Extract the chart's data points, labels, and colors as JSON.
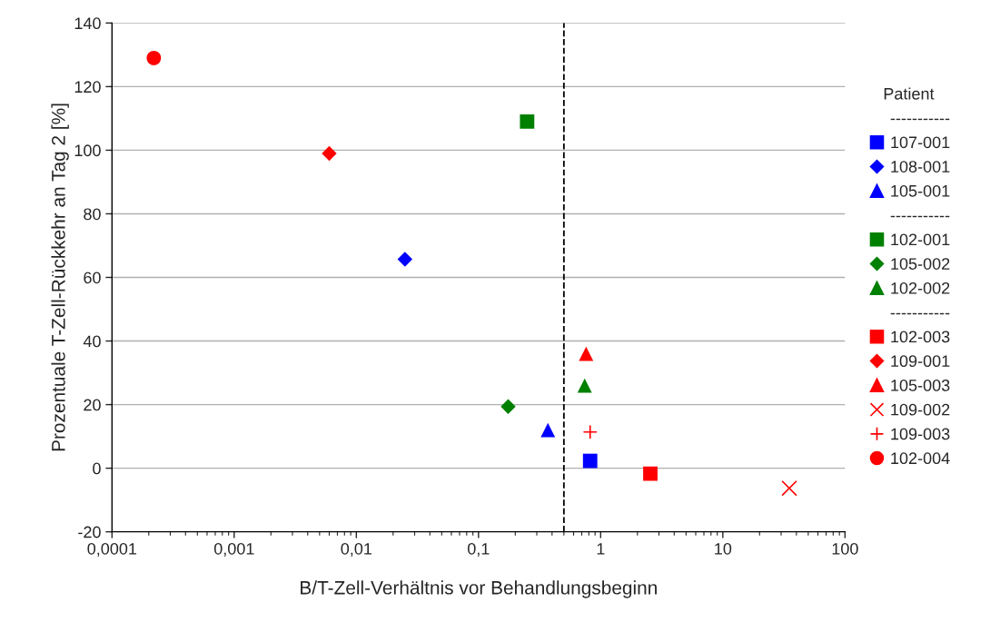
{
  "chart_data": {
    "type": "scatter",
    "xlabel": "B/T-Zell-Verhältnis vor Behandlungsbeginn",
    "ylabel": "Prozentuale T-Zell-Rückkehr an Tag 2 [%]",
    "legend_title": "Patient",
    "legend": "right",
    "log": "x",
    "grid": "y",
    "xlim": [
      0.0001,
      100
    ],
    "xticks": [
      {
        "value": 0.0001,
        "label": "0,0001"
      },
      {
        "value": 0.001,
        "label": "0,001"
      },
      {
        "value": 0.01,
        "label": "0,01"
      },
      {
        "value": 0.1,
        "label": "0,1"
      },
      1,
      10,
      100
    ],
    "ylim": [
      -20,
      140
    ],
    "yticks": [
      -20,
      0,
      20,
      40,
      60,
      80,
      100,
      120,
      140
    ],
    "ref_lines": [
      {
        "axis": "x",
        "value": 0.5,
        "color": "#000000",
        "line_style": "dashed"
      }
    ],
    "series": [
      {
        "name": "-----------",
        "marker": "none"
      },
      {
        "name": "107-001",
        "color": "#0000ff",
        "marker": "square",
        "x": [
          0.82
        ],
        "values": [
          2.3
        ]
      },
      {
        "name": "108-001",
        "color": "#0000ff",
        "marker": "diamond",
        "x": [
          0.025
        ],
        "values": [
          65.7
        ]
      },
      {
        "name": "105-001",
        "color": "#0000ff",
        "marker": "triangle",
        "x": [
          0.37
        ],
        "values": [
          12
        ]
      },
      {
        "name": "-----------",
        "marker": "none"
      },
      {
        "name": "102-001",
        "color": "#008000",
        "marker": "square",
        "x": [
          0.25
        ],
        "values": [
          109
        ]
      },
      {
        "name": "105-002",
        "color": "#008000",
        "marker": "diamond",
        "x": [
          0.175
        ],
        "values": [
          19.4
        ]
      },
      {
        "name": "102-002",
        "color": "#008000",
        "marker": "triangle",
        "x": [
          0.74
        ],
        "values": [
          26
        ]
      },
      {
        "name": "-----------",
        "marker": "none"
      },
      {
        "name": "102-003",
        "color": "#ff0000",
        "marker": "square",
        "x": [
          2.55
        ],
        "values": [
          -1.7
        ]
      },
      {
        "name": "109-001",
        "color": "#ff0000",
        "marker": "diamond",
        "x": [
          0.006
        ],
        "values": [
          99
        ]
      },
      {
        "name": "105-003",
        "color": "#ff0000",
        "marker": "triangle",
        "x": [
          0.76
        ],
        "values": [
          36
        ]
      },
      {
        "name": "109-002",
        "color": "#ff0000",
        "marker": "cross",
        "x": [
          35
        ],
        "values": [
          -6.3
        ]
      },
      {
        "name": "109-003",
        "color": "#ff0000",
        "marker": "plus",
        "x": [
          0.82
        ],
        "values": [
          11.4
        ]
      },
      {
        "name": "102-004",
        "color": "#ff0000",
        "marker": "circle",
        "x": [
          0.00022
        ],
        "values": [
          129
        ]
      }
    ]
  }
}
